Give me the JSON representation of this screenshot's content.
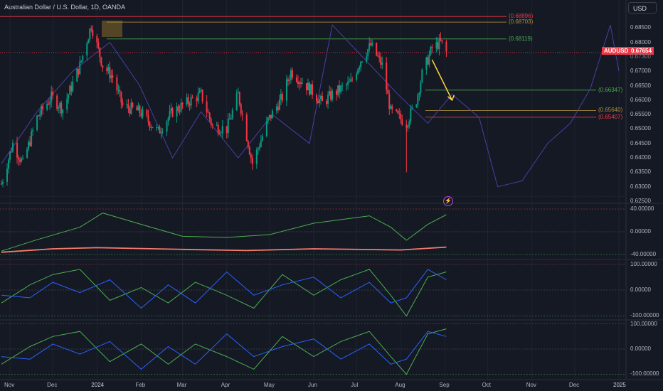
{
  "header": {
    "title": "Australian Dollar / U.S. Dollar, 1D, OANDA",
    "currency_button": "USD"
  },
  "price_tag": {
    "symbol": "AUDUSD",
    "value": "0.67654",
    "below": "0.67300"
  },
  "levels": [
    {
      "label": "(0.68896)",
      "value": 0.68896,
      "color": "#f23645"
    },
    {
      "label": "(0.68703)",
      "value": 0.68703,
      "color": "#b08f3a"
    },
    {
      "label": "(0.68119)",
      "value": 0.68119,
      "color": "#4caf50"
    },
    {
      "label": "(0.66347)",
      "value": 0.66347,
      "color": "#4caf50"
    },
    {
      "label": "(0.65640)",
      "value": 0.6564,
      "color": "#b08f3a"
    },
    {
      "label": "(0.65407)",
      "value": 0.65407,
      "color": "#f23645"
    }
  ],
  "colors": {
    "up": "#089981",
    "down": "#f23645",
    "ghost": "#4a3fa0",
    "green": "#4caf50",
    "blue": "#2962ff",
    "salmon": "#f77c6a",
    "arrow": "#fdd835"
  },
  "chart_data": [
    {
      "type": "candlestick",
      "symbol": "AUDUSD",
      "interval": "1D",
      "ylim": [
        0.625,
        0.69
      ],
      "price_ticks": [
        "0.68500",
        "0.68000",
        "0.67300",
        "0.67000",
        "0.66500",
        "0.66000",
        "0.65500",
        "0.65000",
        "0.64500",
        "0.64000",
        "0.63500",
        "0.63000",
        "0.62500"
      ],
      "x_ticks": [
        "Nov",
        "Dec",
        "2024",
        "Feb",
        "Mar",
        "Apr",
        "May",
        "Jun",
        "Jul",
        "Aug",
        "Sep",
        "Oct",
        "Nov",
        "Dec",
        "2025"
      ],
      "close_path": [
        [
          "2023-10-26",
          0.631
        ],
        [
          "2023-11-03",
          0.645
        ],
        [
          "2023-11-10",
          0.638
        ],
        [
          "2023-11-20",
          0.654
        ],
        [
          "2023-11-30",
          0.661
        ],
        [
          "2023-12-08",
          0.657
        ],
        [
          "2023-12-20",
          0.672
        ],
        [
          "2023-12-28",
          0.686
        ],
        [
          "2024-01-05",
          0.672
        ],
        [
          "2024-01-12",
          0.668
        ],
        [
          "2024-01-19",
          0.658
        ],
        [
          "2024-01-31",
          0.656
        ],
        [
          "2024-02-13",
          0.649
        ],
        [
          "2024-02-23",
          0.656
        ],
        [
          "2024-03-07",
          0.66
        ],
        [
          "2024-03-14",
          0.662
        ],
        [
          "2024-03-22",
          0.651
        ],
        [
          "2024-04-01",
          0.65
        ],
        [
          "2024-04-09",
          0.662
        ],
        [
          "2024-04-19",
          0.638
        ],
        [
          "2024-04-30",
          0.653
        ],
        [
          "2024-05-10",
          0.661
        ],
        [
          "2024-05-16",
          0.67
        ],
        [
          "2024-05-29",
          0.664
        ],
        [
          "2024-06-07",
          0.659
        ],
        [
          "2024-06-14",
          0.662
        ],
        [
          "2024-06-27",
          0.666
        ],
        [
          "2024-07-04",
          0.674
        ],
        [
          "2024-07-11",
          0.679
        ],
        [
          "2024-07-19",
          0.672
        ],
        [
          "2024-07-25",
          0.656
        ],
        [
          "2024-08-05",
          0.652
        ],
        [
          "2024-08-12",
          0.66
        ],
        [
          "2024-08-16",
          0.669
        ],
        [
          "2024-08-23",
          0.678
        ],
        [
          "2024-08-29",
          0.68
        ],
        [
          "2024-09-02",
          0.6765
        ]
      ],
      "ghost_overlay_path": [
        [
          "2023-10-26",
          0.638
        ],
        [
          "2023-11-20",
          0.656
        ],
        [
          "2023-12-15",
          0.67
        ],
        [
          "2024-01-10",
          0.68
        ],
        [
          "2024-01-31",
          0.665
        ],
        [
          "2024-02-23",
          0.64
        ],
        [
          "2024-03-14",
          0.656
        ],
        [
          "2024-04-09",
          0.64
        ],
        [
          "2024-05-03",
          0.655
        ],
        [
          "2024-05-29",
          0.645
        ],
        [
          "2024-06-14",
          0.686
        ],
        [
          "2024-07-11",
          0.672
        ],
        [
          "2024-07-30",
          0.662
        ],
        [
          "2024-08-20",
          0.652
        ],
        [
          "2024-09-06",
          0.662
        ],
        [
          "2024-09-25",
          0.654
        ],
        [
          "2024-10-08",
          0.63
        ],
        [
          "2024-10-25",
          0.632
        ],
        [
          "2024-11-12",
          0.645
        ],
        [
          "2024-11-28",
          0.652
        ],
        [
          "2024-12-12",
          0.664
        ],
        [
          "2024-12-26",
          0.686
        ],
        [
          "2025-01-01",
          0.67
        ]
      ],
      "projection_arrow": {
        "from": [
          "2024-08-23",
          0.674
        ],
        "to": [
          "2024-09-06",
          0.66
        ]
      }
    },
    {
      "type": "line",
      "y_ticks": [
        "40.00000",
        "0.00000",
        "-40.00000"
      ],
      "ylim": [
        -45,
        45
      ],
      "series": [
        {
          "color": "#4caf50",
          "points": [
            [
              "2023-10-26",
              -34
            ],
            [
              "2023-11-20",
              -14
            ],
            [
              "2023-12-20",
              8
            ],
            [
              "2024-01-05",
              33
            ],
            [
              "2024-02-01",
              13
            ],
            [
              "2024-03-01",
              -8
            ],
            [
              "2024-04-01",
              -10
            ],
            [
              "2024-05-01",
              -5
            ],
            [
              "2024-06-01",
              15
            ],
            [
              "2024-07-10",
              28
            ],
            [
              "2024-07-25",
              8
            ],
            [
              "2024-08-05",
              -15
            ],
            [
              "2024-08-20",
              13
            ],
            [
              "2024-09-02",
              30
            ]
          ]
        },
        {
          "color": "#f77c6a",
          "points": [
            [
              "2023-10-26",
              -36
            ],
            [
              "2023-12-01",
              -30
            ],
            [
              "2024-01-01",
              -28
            ],
            [
              "2024-03-01",
              -31
            ],
            [
              "2024-04-15",
              -33
            ],
            [
              "2024-06-01",
              -30
            ],
            [
              "2024-08-01",
              -32
            ],
            [
              "2024-09-02",
              -27
            ]
          ]
        }
      ]
    },
    {
      "type": "line",
      "y_ticks": [
        "100.00000",
        "0.00000",
        "-100.00000"
      ],
      "ylim": [
        -110,
        110
      ],
      "series": [
        {
          "color": "#4caf50",
          "points": [
            [
              "2023-10-26",
              -50
            ],
            [
              "2023-11-15",
              20
            ],
            [
              "2023-12-01",
              60
            ],
            [
              "2023-12-20",
              80
            ],
            [
              "2024-01-10",
              -40
            ],
            [
              "2024-02-01",
              10
            ],
            [
              "2024-02-20",
              -50
            ],
            [
              "2024-03-10",
              30
            ],
            [
              "2024-04-01",
              -20
            ],
            [
              "2024-04-20",
              -70
            ],
            [
              "2024-05-10",
              60
            ],
            [
              "2024-06-01",
              -20
            ],
            [
              "2024-06-20",
              40
            ],
            [
              "2024-07-10",
              80
            ],
            [
              "2024-07-25",
              -20
            ],
            [
              "2024-08-05",
              -100
            ],
            [
              "2024-08-20",
              50
            ],
            [
              "2024-09-02",
              70
            ]
          ]
        },
        {
          "color": "#2962ff",
          "points": [
            [
              "2023-10-26",
              -20
            ],
            [
              "2023-11-15",
              -30
            ],
            [
              "2023-12-01",
              30
            ],
            [
              "2023-12-20",
              -10
            ],
            [
              "2024-01-10",
              40
            ],
            [
              "2024-02-01",
              -70
            ],
            [
              "2024-02-20",
              20
            ],
            [
              "2024-03-10",
              -50
            ],
            [
              "2024-04-01",
              70
            ],
            [
              "2024-04-20",
              -20
            ],
            [
              "2024-05-10",
              20
            ],
            [
              "2024-06-01",
              50
            ],
            [
              "2024-06-20",
              -30
            ],
            [
              "2024-07-10",
              30
            ],
            [
              "2024-07-25",
              -50
            ],
            [
              "2024-08-05",
              -30
            ],
            [
              "2024-08-20",
              80
            ],
            [
              "2024-09-02",
              40
            ]
          ]
        }
      ]
    },
    {
      "type": "line",
      "y_ticks": [
        "100.00000",
        "0.00000",
        "-100.00000"
      ],
      "ylim": [
        -110,
        110
      ],
      "series": [
        {
          "color": "#4caf50",
          "points": [
            [
              "2023-10-26",
              -60
            ],
            [
              "2023-11-15",
              10
            ],
            [
              "2023-12-01",
              50
            ],
            [
              "2023-12-20",
              70
            ],
            [
              "2024-01-10",
              -50
            ],
            [
              "2024-02-01",
              20
            ],
            [
              "2024-02-20",
              -60
            ],
            [
              "2024-03-10",
              20
            ],
            [
              "2024-04-01",
              -30
            ],
            [
              "2024-04-20",
              -80
            ],
            [
              "2024-05-10",
              50
            ],
            [
              "2024-06-01",
              -30
            ],
            [
              "2024-06-20",
              30
            ],
            [
              "2024-07-10",
              70
            ],
            [
              "2024-07-25",
              -30
            ],
            [
              "2024-08-05",
              -100
            ],
            [
              "2024-08-20",
              60
            ],
            [
              "2024-09-02",
              80
            ]
          ]
        },
        {
          "color": "#2962ff",
          "points": [
            [
              "2023-10-26",
              -30
            ],
            [
              "2023-11-15",
              -40
            ],
            [
              "2023-12-01",
              20
            ],
            [
              "2023-12-20",
              -20
            ],
            [
              "2024-01-10",
              30
            ],
            [
              "2024-02-01",
              -80
            ],
            [
              "2024-02-20",
              10
            ],
            [
              "2024-03-10",
              -60
            ],
            [
              "2024-04-01",
              60
            ],
            [
              "2024-04-20",
              -30
            ],
            [
              "2024-05-10",
              10
            ],
            [
              "2024-06-01",
              40
            ],
            [
              "2024-06-20",
              -40
            ],
            [
              "2024-07-10",
              20
            ],
            [
              "2024-07-25",
              -60
            ],
            [
              "2024-08-05",
              -40
            ],
            [
              "2024-08-20",
              70
            ],
            [
              "2024-09-02",
              50
            ]
          ]
        }
      ]
    }
  ]
}
